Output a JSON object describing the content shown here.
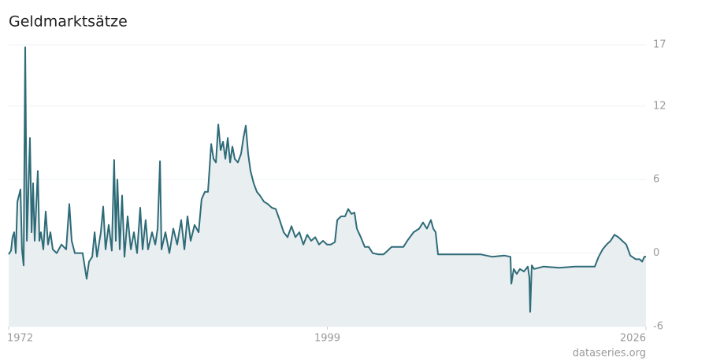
{
  "chart_data": {
    "type": "area",
    "title": "Geldmarktsätze",
    "source": "dataseries.org",
    "xlim": [
      1972,
      2026
    ],
    "xticks": [
      1972,
      1999,
      2026
    ],
    "ylim": [
      -6,
      17
    ],
    "yticks": [
      -6,
      0,
      6,
      12,
      17
    ],
    "grid": true,
    "series": [
      {
        "color": "#2e6b78",
        "fill": "#e9eef0",
        "x": [
          1972.0,
          1972.2,
          1972.33,
          1972.47,
          1972.6,
          1972.74,
          1973.0,
          1973.13,
          1973.27,
          1973.4,
          1973.54,
          1973.67,
          1973.8,
          1973.94,
          1974.07,
          1974.2,
          1974.34,
          1974.47,
          1974.6,
          1974.74,
          1974.94,
          1975.14,
          1975.34,
          1975.54,
          1975.74,
          1976.07,
          1976.47,
          1976.87,
          1977.14,
          1977.34,
          1977.61,
          1978.27,
          1978.61,
          1978.81,
          1979.08,
          1979.28,
          1979.48,
          1979.81,
          1980.01,
          1980.21,
          1980.48,
          1980.74,
          1980.94,
          1981.08,
          1981.21,
          1981.41,
          1981.61,
          1981.81,
          1982.08,
          1982.35,
          1982.61,
          1982.88,
          1983.15,
          1983.35,
          1983.61,
          1983.81,
          1984.15,
          1984.42,
          1984.62,
          1984.82,
          1984.95,
          1985.28,
          1985.62,
          1985.95,
          1986.28,
          1986.62,
          1986.89,
          1987.15,
          1987.42,
          1987.75,
          1988.09,
          1988.35,
          1988.62,
          1988.89,
          1989.16,
          1989.36,
          1989.56,
          1989.76,
          1989.96,
          1990.16,
          1990.36,
          1990.56,
          1990.76,
          1990.96,
          1991.16,
          1991.42,
          1991.69,
          1991.89,
          1992.09,
          1992.29,
          1992.49,
          1992.76,
          1993.03,
          1993.29,
          1993.63,
          1993.96,
          1994.3,
          1994.63,
          1994.96,
          1995.3,
          1995.63,
          1995.96,
          1996.3,
          1996.63,
          1996.97,
          1997.3,
          1997.63,
          1997.97,
          1998.3,
          1998.63,
          1998.97,
          1999.3,
          1999.64,
          1999.84,
          2000.17,
          2000.5,
          2000.77,
          2001.04,
          2001.3,
          2001.5,
          2001.84,
          2002.17,
          2002.51,
          2002.84,
          2003.31,
          2003.77,
          2004.11,
          2004.44,
          2004.97,
          2005.44,
          2005.84,
          2006.31,
          2006.78,
          2007.11,
          2007.44,
          2007.78,
          2007.98,
          2008.18,
          2008.38,
          2008.78,
          2009.31,
          2010.65,
          2011.98,
          2012.99,
          2013.99,
          2014.52,
          2014.59,
          2014.79,
          2015.05,
          2015.32,
          2015.66,
          2015.99,
          2016.12,
          2016.19,
          2016.32,
          2016.52,
          2017.32,
          2018.66,
          2019.99,
          2021.66,
          2021.99,
          2022.33,
          2022.66,
          2023.0,
          2023.33,
          2023.66,
          2023.99,
          2024.33,
          2024.67,
          2025.13,
          2025.47,
          2025.67,
          2025.86,
          2026.0
        ],
        "values": [
          -0.1,
          0.2,
          1.3,
          1.7,
          0,
          4.2,
          5.2,
          0.3,
          -1.0,
          16.8,
          1.0,
          5.0,
          9.4,
          1.7,
          5.7,
          1.0,
          4.0,
          6.7,
          1.0,
          1.7,
          0.3,
          3.4,
          0.7,
          1.7,
          0.3,
          0,
          0.7,
          0.3,
          4.0,
          1.0,
          0,
          0,
          -2.1,
          -0.7,
          -0.3,
          1.7,
          -0.3,
          1.7,
          3.8,
          0.3,
          2.3,
          0.2,
          7.6,
          1.0,
          6.0,
          0.3,
          4.7,
          -0.3,
          3.0,
          0.3,
          1.7,
          0,
          3.7,
          0.3,
          2.7,
          0.3,
          1.7,
          0.7,
          2.0,
          7.5,
          0.3,
          1.7,
          0,
          2.0,
          0.7,
          2.7,
          0.3,
          3.0,
          1.0,
          2.3,
          1.7,
          4.4,
          5.0,
          5.0,
          8.9,
          7.7,
          7.4,
          10.5,
          8.4,
          9.1,
          7.7,
          9.4,
          7.4,
          8.7,
          7.7,
          7.4,
          8.1,
          9.4,
          10.4,
          8.1,
          6.7,
          5.7,
          5.0,
          4.7,
          4.2,
          4.0,
          3.7,
          3.6,
          2.7,
          1.7,
          1.3,
          2.2,
          1.3,
          1.7,
          0.7,
          1.5,
          1.0,
          1.3,
          0.7,
          1.0,
          0.7,
          0.7,
          0.9,
          2.7,
          3.0,
          3.0,
          3.6,
          3.2,
          3.3,
          2.0,
          1.3,
          0.5,
          0.5,
          0,
          -0.1,
          -0.1,
          0.2,
          0.5,
          0.5,
          0.5,
          1.1,
          1.7,
          2.0,
          2.5,
          2.0,
          2.7,
          2.0,
          1.7,
          -0.1,
          -0.1,
          -0.1,
          -0.1,
          -0.1,
          -0.3,
          -0.2,
          -0.3,
          -2.5,
          -1.3,
          -1.7,
          -1.3,
          -1.5,
          -1.1,
          -2.0,
          -4.8,
          -1.0,
          -1.3,
          -1.1,
          -1.2,
          -1.1,
          -1.1,
          -0.3,
          0.3,
          0.7,
          1.0,
          1.5,
          1.3,
          1.0,
          0.7,
          -0.2,
          -0.5,
          -0.5,
          -0.7,
          -0.3,
          -0.3
        ]
      }
    ]
  }
}
